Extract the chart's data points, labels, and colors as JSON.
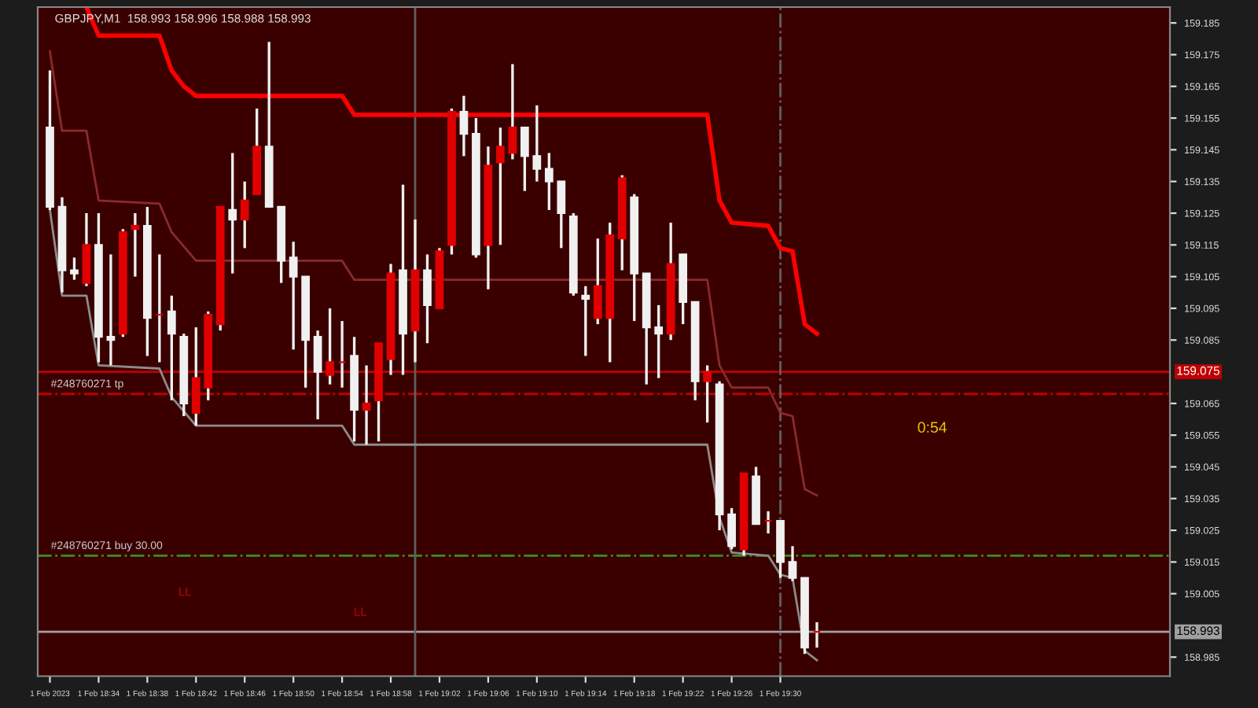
{
  "chart_data": {
    "type": "candlestick",
    "x": [
      "2023-02-01T18:30",
      "2023-02-01T18:31",
      "2023-02-01T18:32",
      "2023-02-01T18:33",
      "2023-02-01T18:34",
      "2023-02-01T18:35",
      "2023-02-01T18:36",
      "2023-02-01T18:37",
      "2023-02-01T18:38",
      "2023-02-01T18:39",
      "2023-02-01T18:40",
      "2023-02-01T18:41",
      "2023-02-01T18:42",
      "2023-02-01T18:43",
      "2023-02-01T18:44",
      "2023-02-01T18:45",
      "2023-02-01T18:46",
      "2023-02-01T18:47",
      "2023-02-01T18:48",
      "2023-02-01T18:49",
      "2023-02-01T18:50",
      "2023-02-01T18:51",
      "2023-02-01T18:52",
      "2023-02-01T18:53",
      "2023-02-01T18:54",
      "2023-02-01T18:55",
      "2023-02-01T18:56",
      "2023-02-01T18:57",
      "2023-02-01T18:58",
      "2023-02-01T18:59",
      "2023-02-01T19:00",
      "2023-02-01T19:01",
      "2023-02-01T19:02",
      "2023-02-01T19:03",
      "2023-02-01T19:04",
      "2023-02-01T19:05",
      "2023-02-01T19:06",
      "2023-02-01T19:07",
      "2023-02-01T19:08",
      "2023-02-01T19:09",
      "2023-02-01T19:10",
      "2023-02-01T19:11",
      "2023-02-01T19:12",
      "2023-02-01T19:13",
      "2023-02-01T19:14",
      "2023-02-01T19:15",
      "2023-02-01T19:16",
      "2023-02-01T19:17",
      "2023-02-01T19:18",
      "2023-02-01T19:19",
      "2023-02-01T19:20",
      "2023-02-01T19:21",
      "2023-02-01T19:22",
      "2023-02-01T19:23",
      "2023-02-01T19:24",
      "2023-02-01T19:25",
      "2023-02-01T19:26",
      "2023-02-01T19:27",
      "2023-02-01T19:28",
      "2023-02-01T19:29",
      "2023-02-01T19:30",
      "2023-02-01T19:31",
      "2023-02-01T19:32",
      "2023-02-01T19:33"
    ],
    "ohlc": [
      [
        159.152,
        159.17,
        159.126,
        159.127
      ],
      [
        159.127,
        159.13,
        159.1,
        159.107
      ],
      [
        159.107,
        159.111,
        159.104,
        159.106
      ],
      [
        159.103,
        159.125,
        159.102,
        159.115
      ],
      [
        159.115,
        159.125,
        159.078,
        159.086
      ],
      [
        159.086,
        159.112,
        159.077,
        159.085
      ],
      [
        159.087,
        159.12,
        159.086,
        159.119
      ],
      [
        159.12,
        159.125,
        159.105,
        159.121
      ],
      [
        159.121,
        159.127,
        159.08,
        159.092
      ],
      [
        159.093,
        159.112,
        159.078,
        159.093
      ],
      [
        159.094,
        159.099,
        159.066,
        159.087
      ],
      [
        159.086,
        159.087,
        159.061,
        159.065
      ],
      [
        159.062,
        159.089,
        159.058,
        159.073
      ],
      [
        159.07,
        159.094,
        159.066,
        159.093
      ],
      [
        159.09,
        159.127,
        159.088,
        159.127
      ],
      [
        159.126,
        159.144,
        159.106,
        159.123
      ],
      [
        159.123,
        159.135,
        159.114,
        159.129
      ],
      [
        159.131,
        159.158,
        159.131,
        159.146
      ],
      [
        159.146,
        159.179,
        159.127,
        159.127
      ],
      [
        159.127,
        159.127,
        159.103,
        159.11
      ],
      [
        159.111,
        159.116,
        159.082,
        159.105
      ],
      [
        159.105,
        159.105,
        159.07,
        159.085
      ],
      [
        159.086,
        159.088,
        159.06,
        159.075
      ],
      [
        159.074,
        159.095,
        159.071,
        159.078
      ],
      [
        159.078,
        159.091,
        159.07,
        159.078
      ],
      [
        159.08,
        159.086,
        159.053,
        159.063
      ],
      [
        159.063,
        159.077,
        159.052,
        159.065
      ],
      [
        159.066,
        159.084,
        159.053,
        159.084
      ],
      [
        159.079,
        159.109,
        159.074,
        159.106
      ],
      [
        159.107,
        159.134,
        159.074,
        159.087
      ],
      [
        159.088,
        159.123,
        159.078,
        159.107
      ],
      [
        159.107,
        159.112,
        159.084,
        159.096
      ],
      [
        159.095,
        159.114,
        159.095,
        159.113
      ],
      [
        159.115,
        159.158,
        159.112,
        159.157
      ],
      [
        159.157,
        159.162,
        159.143,
        159.15
      ],
      [
        159.15,
        159.155,
        159.111,
        159.112
      ],
      [
        159.115,
        159.146,
        159.101,
        159.14
      ],
      [
        159.141,
        159.152,
        159.115,
        159.146
      ],
      [
        159.144,
        159.172,
        159.142,
        159.152
      ],
      [
        159.152,
        159.152,
        159.132,
        159.143
      ],
      [
        159.143,
        159.159,
        159.135,
        159.139
      ],
      [
        159.139,
        159.144,
        159.126,
        159.135
      ],
      [
        159.135,
        159.135,
        159.114,
        159.125
      ],
      [
        159.124,
        159.125,
        159.099,
        159.1
      ],
      [
        159.099,
        159.102,
        159.08,
        159.098
      ],
      [
        159.092,
        159.117,
        159.09,
        159.102
      ],
      [
        159.092,
        159.122,
        159.078,
        159.118
      ],
      [
        159.117,
        159.137,
        159.107,
        159.136
      ],
      [
        159.13,
        159.131,
        159.091,
        159.106
      ],
      [
        159.106,
        159.106,
        159.071,
        159.089
      ],
      [
        159.089,
        159.096,
        159.073,
        159.087
      ],
      [
        159.087,
        159.122,
        159.085,
        159.109
      ],
      [
        159.112,
        159.112,
        159.09,
        159.097
      ],
      [
        159.097,
        159.097,
        159.066,
        159.072
      ],
      [
        159.072,
        159.077,
        159.059,
        159.075
      ],
      [
        159.071,
        159.072,
        159.025,
        159.03
      ],
      [
        159.03,
        159.032,
        159.019,
        159.02
      ],
      [
        159.019,
        159.043,
        159.017,
        159.043
      ],
      [
        159.042,
        159.045,
        159.027,
        159.027
      ],
      [
        159.028,
        159.031,
        159.024,
        159.028
      ],
      [
        159.028,
        159.028,
        159.01,
        159.015
      ],
      [
        159.015,
        159.02,
        159.009,
        159.01
      ],
      [
        159.01,
        159.01,
        158.986,
        158.988
      ],
      [
        158.993,
        158.996,
        158.988,
        158.993
      ]
    ],
    "colors": [
      "#f0f0f0",
      "#f0f0f0",
      "#f0f0f0",
      "#e00000",
      "#f0f0f0",
      "#f0f0f0",
      "#e00000",
      "#e00000",
      "#f0f0f0",
      "#e00000",
      "#f0f0f0",
      "#f0f0f0",
      "#e00000",
      "#e00000",
      "#e00000",
      "#f0f0f0",
      "#e00000",
      "#e00000",
      "#f0f0f0",
      "#f0f0f0",
      "#f0f0f0",
      "#f0f0f0",
      "#f0f0f0",
      "#e00000",
      "#e00000",
      "#f0f0f0",
      "#e00000",
      "#e00000",
      "#e00000",
      "#f0f0f0",
      "#e00000",
      "#f0f0f0",
      "#e00000",
      "#e00000",
      "#f0f0f0",
      "#f0f0f0",
      "#e00000",
      "#e00000",
      "#e00000",
      "#f0f0f0",
      "#f0f0f0",
      "#f0f0f0",
      "#f0f0f0",
      "#f0f0f0",
      "#f0f0f0",
      "#e00000",
      "#e00000",
      "#e00000",
      "#f0f0f0",
      "#f0f0f0",
      "#f0f0f0",
      "#e00000",
      "#f0f0f0",
      "#f0f0f0",
      "#e00000",
      "#f0f0f0",
      "#f0f0f0",
      "#e00000",
      "#f0f0f0",
      "#e00000",
      "#f0f0f0",
      "#f0f0f0",
      "#f0f0f0",
      "#e00000"
    ],
    "series": [
      {
        "type": "line",
        "color": "#ff0000",
        "x": [
          "2023-02-01T18:33",
          "2023-02-01T18:34",
          "2023-02-01T18:39",
          "2023-02-01T18:40",
          "2023-02-01T18:41",
          "2023-02-01T18:42",
          "2023-02-01T18:54",
          "2023-02-01T18:55",
          "2023-02-01T18:56",
          "2023-02-01T19:24",
          "2023-02-01T19:25",
          "2023-02-01T19:26",
          "2023-02-01T19:29",
          "2023-02-01T19:30",
          "2023-02-01T19:31",
          "2023-02-01T19:32",
          "2023-02-01T19:33"
        ],
        "values": [
          159.19,
          159.181,
          159.181,
          159.17,
          159.165,
          159.162,
          159.162,
          159.156,
          159.156,
          159.156,
          159.129,
          159.122,
          159.121,
          159.114,
          159.113,
          159.09,
          159.087
        ]
      },
      {
        "type": "line",
        "color": "#8b2a2a",
        "x": [
          "2023-02-01T18:30",
          "2023-02-01T18:31",
          "2023-02-01T18:33",
          "2023-02-01T18:34",
          "2023-02-01T18:39",
          "2023-02-01T18:40",
          "2023-02-01T18:42",
          "2023-02-01T18:54",
          "2023-02-01T18:55",
          "2023-02-01T18:56",
          "2023-02-01T19:24",
          "2023-02-01T19:25",
          "2023-02-01T19:26",
          "2023-02-01T19:29",
          "2023-02-01T19:30",
          "2023-02-01T19:31",
          "2023-02-01T19:32",
          "2023-02-01T19:33"
        ],
        "values": [
          159.176,
          159.151,
          159.151,
          159.129,
          159.128,
          159.119,
          159.11,
          159.11,
          159.104,
          159.104,
          159.104,
          159.077,
          159.07,
          159.07,
          159.062,
          159.061,
          159.038,
          159.036
        ]
      },
      {
        "type": "line",
        "color": "#8c8c8c",
        "x": [
          "2023-02-01T18:30",
          "2023-02-01T18:31",
          "2023-02-01T18:33",
          "2023-02-01T18:34",
          "2023-02-01T18:39",
          "2023-02-01T18:40",
          "2023-02-01T18:42",
          "2023-02-01T18:54",
          "2023-02-01T18:55",
          "2023-02-01T19:24",
          "2023-02-01T19:25",
          "2023-02-01T19:26",
          "2023-02-01T19:29",
          "2023-02-01T19:30",
          "2023-02-01T19:31",
          "2023-02-01T19:32",
          "2023-02-01T19:33"
        ],
        "values": [
          159.126,
          159.099,
          159.099,
          159.077,
          159.076,
          159.067,
          159.058,
          159.058,
          159.052,
          159.052,
          159.029,
          159.018,
          159.017,
          159.011,
          159.01,
          158.987,
          158.984
        ]
      }
    ],
    "ref_lines": [
      {
        "axis": "y",
        "value": 159.075,
        "label": "159.075",
        "color": "#c00000",
        "line_style": "solid"
      },
      {
        "axis": "y",
        "value": 159.068,
        "label": "#248760271 tp",
        "color": "#c00000",
        "line_style": "dashed"
      },
      {
        "axis": "y",
        "value": 159.017,
        "label": "#248760271 buy 30.00",
        "color": "#3c8c1e",
        "line_style": "dashed"
      },
      {
        "axis": "y",
        "value": 158.993,
        "label": "158.993",
        "color": "#a0a0a0",
        "line_style": "solid"
      },
      {
        "axis": "x",
        "value": "2023-02-01T19:00",
        "label": null,
        "color": "#606060",
        "line_style": "solid"
      },
      {
        "axis": "x",
        "value": "2023-02-01T19:30",
        "label": null,
        "color": "#606060",
        "line_style": "dashed"
      }
    ],
    "annotations": [
      "GBPJPY,M1  158.993 158.996 158.988 158.993",
      "0:54",
      "LL",
      "LL"
    ],
    "xlim": [
      "2023-02-01T18:29",
      "2023-02-01T20:02"
    ],
    "xticks": [
      {
        "value": "2023-02-01T18:30",
        "label": "1 Feb 2023"
      },
      {
        "value": "2023-02-01T18:34",
        "label": "1 Feb 18:34"
      },
      {
        "value": "2023-02-01T18:38",
        "label": "1 Feb 18:38"
      },
      {
        "value": "2023-02-01T18:42",
        "label": "1 Feb 18:42"
      },
      {
        "value": "2023-02-01T18:46",
        "label": "1 Feb 18:46"
      },
      {
        "value": "2023-02-01T18:50",
        "label": "1 Feb 18:50"
      },
      {
        "value": "2023-02-01T18:54",
        "label": "1 Feb 18:54"
      },
      {
        "value": "2023-02-01T18:58",
        "label": "1 Feb 18:58"
      },
      {
        "value": "2023-02-01T19:02",
        "label": "1 Feb 19:02"
      },
      {
        "value": "2023-02-01T19:06",
        "label": "1 Feb 19:06"
      },
      {
        "value": "2023-02-01T19:10",
        "label": "1 Feb 19:10"
      },
      {
        "value": "2023-02-01T19:14",
        "label": "1 Feb 19:14"
      },
      {
        "value": "2023-02-01T19:18",
        "label": "1 Feb 19:18"
      },
      {
        "value": "2023-02-01T19:22",
        "label": "1 Feb 19:22"
      },
      {
        "value": "2023-02-01T19:26",
        "label": "1 Feb 19:26"
      },
      {
        "value": "2023-02-01T19:30",
        "label": "1 Feb 19:30"
      }
    ],
    "ylim": [
      158.979,
      159.19
    ],
    "yticks": [
      158.985,
      159.005,
      159.015,
      159.025,
      159.035,
      159.045,
      159.055,
      159.065,
      159.085,
      159.095,
      159.105,
      159.115,
      159.125,
      159.135,
      159.145,
      159.155,
      159.165,
      159.175,
      159.185
    ],
    "grid": false
  }
}
